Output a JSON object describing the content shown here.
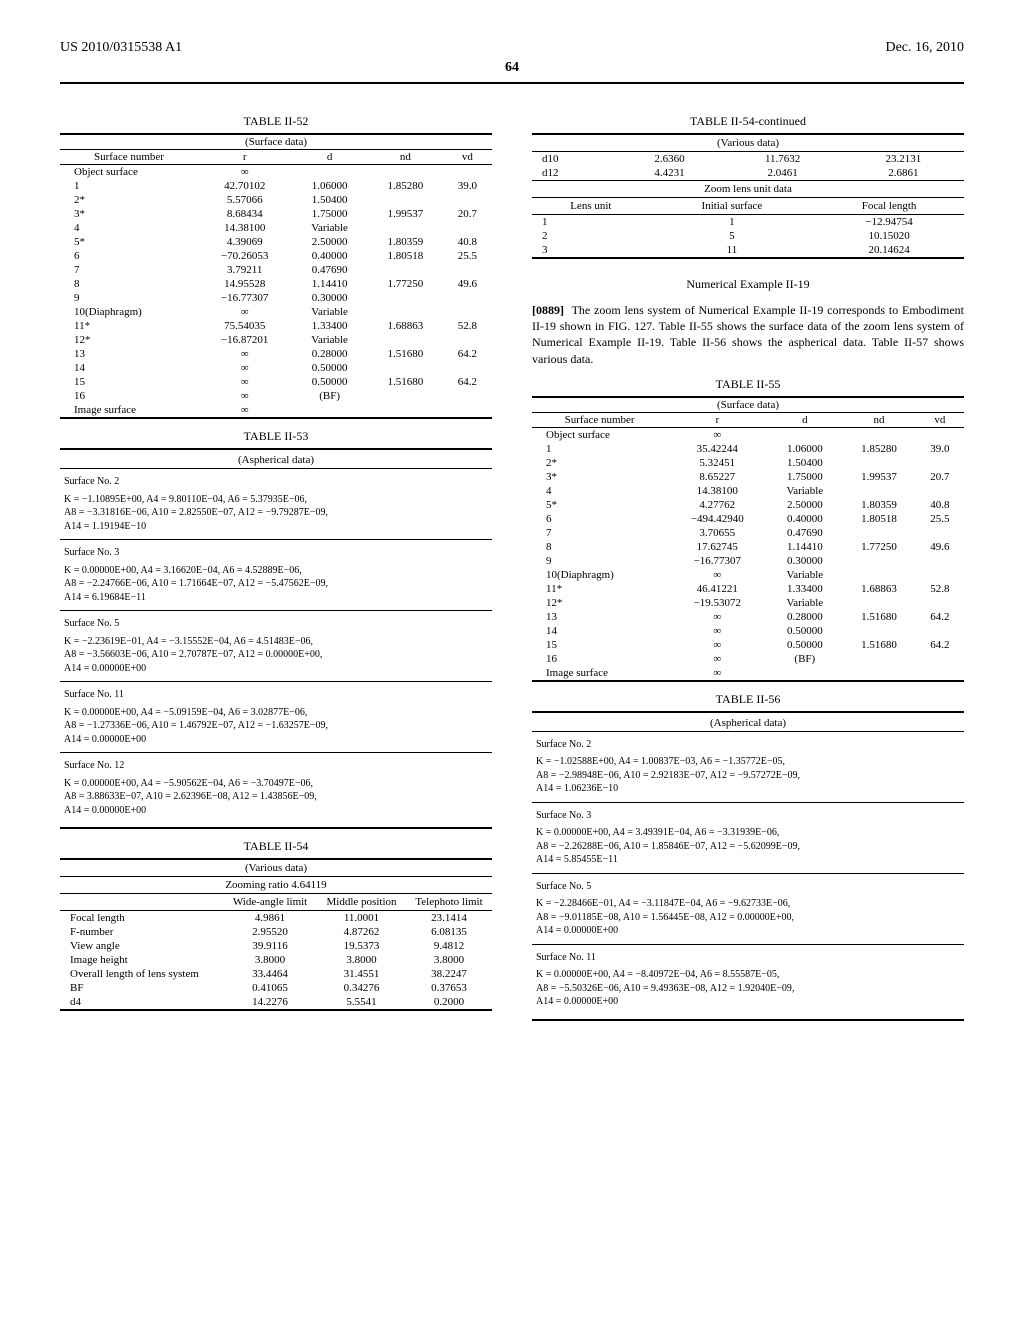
{
  "header": {
    "pub_number": "US 2010/0315538 A1",
    "pub_date": "Dec. 16, 2010",
    "page_number": "64"
  },
  "left": {
    "table52": {
      "title": "TABLE II-52",
      "subtitle": "(Surface data)",
      "columns": [
        "Surface number",
        "r",
        "d",
        "nd",
        "vd"
      ],
      "rows": [
        [
          "Object surface",
          "∞",
          "",
          "",
          ""
        ],
        [
          "1",
          "42.70102",
          "1.06000",
          "1.85280",
          "39.0"
        ],
        [
          "2*",
          "5.57066",
          "1.50400",
          "",
          ""
        ],
        [
          "3*",
          "8.68434",
          "1.75000",
          "1.99537",
          "20.7"
        ],
        [
          "4",
          "14.38100",
          "Variable",
          "",
          ""
        ],
        [
          "5*",
          "4.39069",
          "2.50000",
          "1.80359",
          "40.8"
        ],
        [
          "6",
          "−70.26053",
          "0.40000",
          "1.80518",
          "25.5"
        ],
        [
          "7",
          "3.79211",
          "0.47690",
          "",
          ""
        ],
        [
          "8",
          "14.95528",
          "1.14410",
          "1.77250",
          "49.6"
        ],
        [
          "9",
          "−16.77307",
          "0.30000",
          "",
          ""
        ],
        [
          "10(Diaphragm)",
          "∞",
          "Variable",
          "",
          ""
        ],
        [
          "11*",
          "75.54035",
          "1.33400",
          "1.68863",
          "52.8"
        ],
        [
          "12*",
          "−16.87201",
          "Variable",
          "",
          ""
        ],
        [
          "13",
          "∞",
          "0.28000",
          "1.51680",
          "64.2"
        ],
        [
          "14",
          "∞",
          "0.50000",
          "",
          ""
        ],
        [
          "15",
          "∞",
          "0.50000",
          "1.51680",
          "64.2"
        ],
        [
          "16",
          "∞",
          "(BF)",
          "",
          ""
        ],
        [
          "Image surface",
          "∞",
          "",
          "",
          ""
        ]
      ]
    },
    "table53": {
      "title": "TABLE II-53",
      "subtitle": "(Aspherical data)",
      "entries": [
        {
          "surf": "Surface No. 2",
          "lines": [
            "K = −1.10895E+00, A4 = 9.80110E−04, A6 = 5.37935E−06,",
            "A8 = −3.31816E−06, A10 = 2.82550E−07, A12 = −9.79287E−09,",
            "A14 = 1.19194E−10"
          ]
        },
        {
          "surf": "Surface No. 3",
          "lines": [
            "K = 0.00000E+00, A4 = 3.16620E−04, A6 = 4.52889E−06,",
            "A8 = −2.24766E−06, A10 = 1.71664E−07, A12 = −5.47562E−09,",
            "A14 = 6.19684E−11"
          ]
        },
        {
          "surf": "Surface No. 5",
          "lines": [
            "K = −2.23619E−01, A4 = −3.15552E−04, A6 = 4.51483E−06,",
            "A8 = −3.56603E−06, A10 = 2.70787E−07, A12 = 0.00000E+00,",
            "A14 = 0.00000E+00"
          ]
        },
        {
          "surf": "Surface No. 11",
          "lines": [
            "K = 0.00000E+00, A4 = −5.09159E−04, A6 = 3.02877E−06,",
            "A8 = −1.27336E−06, A10 = 1.46792E−07, A12 = −1.63257E−09,",
            "A14 = 0.00000E+00"
          ]
        },
        {
          "surf": "Surface No. 12",
          "lines": [
            "K = 0.00000E+00, A4 = −5.90562E−04, A6 = −3.70497E−06,",
            "A8 = 3.88633E−07, A10 = 2.62396E−08, A12 = 1.43856E−09,",
            "A14 = 0.00000E+00"
          ]
        }
      ]
    },
    "table54": {
      "title": "TABLE II-54",
      "subtitle": "(Various data)",
      "zoom_ratio": "Zooming ratio 4.64119",
      "columns": [
        "",
        "Wide-angle limit",
        "Middle position",
        "Telephoto limit"
      ],
      "rows": [
        [
          "Focal length",
          "4.9861",
          "11.0001",
          "23.1414"
        ],
        [
          "F-number",
          "2.95520",
          "4.87262",
          "6.08135"
        ],
        [
          "View angle",
          "39.9116",
          "19.5373",
          "9.4812"
        ],
        [
          "Image height",
          "3.8000",
          "3.8000",
          "3.8000"
        ],
        [
          "Overall length of lens system",
          "33.4464",
          "31.4551",
          "38.2247"
        ],
        [
          "BF",
          "0.41065",
          "0.34276",
          "0.37653"
        ],
        [
          "d4",
          "14.2276",
          "5.5541",
          "0.2000"
        ]
      ]
    }
  },
  "right": {
    "table54cont": {
      "title": "TABLE II-54-continued",
      "subtitle": "(Various data)",
      "rows": [
        [
          "d10",
          "2.6360",
          "11.7632",
          "23.2131"
        ],
        [
          "d12",
          "4.4231",
          "2.0461",
          "2.6861"
        ]
      ],
      "zoom_unit": {
        "title": "Zoom lens unit data",
        "columns": [
          "Lens unit",
          "Initial surface",
          "Focal length"
        ],
        "rows": [
          [
            "1",
            "1",
            "−12.94754"
          ],
          [
            "2",
            "5",
            "10.15020"
          ],
          [
            "3",
            "11",
            "20.14624"
          ]
        ]
      }
    },
    "example": {
      "heading": "Numerical Example II-19",
      "para_num": "[0889]",
      "para": "The zoom lens system of Numerical Example II-19 corresponds to Embodiment II-19 shown in FIG. 127. Table II-55 shows the surface data of the zoom lens system of Numerical Example II-19. Table II-56 shows the aspherical data. Table II-57 shows various data."
    },
    "table55": {
      "title": "TABLE II-55",
      "subtitle": "(Surface data)",
      "columns": [
        "Surface number",
        "r",
        "d",
        "nd",
        "vd"
      ],
      "rows": [
        [
          "Object surface",
          "∞",
          "",
          "",
          ""
        ],
        [
          "1",
          "35.42244",
          "1.06000",
          "1.85280",
          "39.0"
        ],
        [
          "2*",
          "5.32451",
          "1.50400",
          "",
          ""
        ],
        [
          "3*",
          "8.65227",
          "1.75000",
          "1.99537",
          "20.7"
        ],
        [
          "4",
          "14.38100",
          "Variable",
          "",
          ""
        ],
        [
          "5*",
          "4.27762",
          "2.50000",
          "1.80359",
          "40.8"
        ],
        [
          "6",
          "−494.42940",
          "0.40000",
          "1.80518",
          "25.5"
        ],
        [
          "7",
          "3.70655",
          "0.47690",
          "",
          ""
        ],
        [
          "8",
          "17.62745",
          "1.14410",
          "1.77250",
          "49.6"
        ],
        [
          "9",
          "−16.77307",
          "0.30000",
          "",
          ""
        ],
        [
          "10(Diaphragm)",
          "∞",
          "Variable",
          "",
          ""
        ],
        [
          "11*",
          "46.41221",
          "1.33400",
          "1.68863",
          "52.8"
        ],
        [
          "12*",
          "−19.53072",
          "Variable",
          "",
          ""
        ],
        [
          "13",
          "∞",
          "0.28000",
          "1.51680",
          "64.2"
        ],
        [
          "14",
          "∞",
          "0.50000",
          "",
          ""
        ],
        [
          "15",
          "∞",
          "0.50000",
          "1.51680",
          "64.2"
        ],
        [
          "16",
          "∞",
          "(BF)",
          "",
          ""
        ],
        [
          "Image surface",
          "∞",
          "",
          "",
          ""
        ]
      ]
    },
    "table56": {
      "title": "TABLE II-56",
      "subtitle": "(Aspherical data)",
      "entries": [
        {
          "surf": "Surface No. 2",
          "lines": [
            "K = −1.02588E+00, A4 = 1.00837E−03, A6 = −1.35772E−05,",
            "A8 = −2.98948E−06, A10 = 2.92183E−07, A12 = −9.57272E−09,",
            "A14 = 1.06236E−10"
          ]
        },
        {
          "surf": "Surface No. 3",
          "lines": [
            "K = 0.00000E+00, A4 = 3.49391E−04, A6 = −3.31939E−06,",
            "A8 = −2.26288E−06, A10 = 1.85846E−07, A12 = −5.62099E−09,",
            "A14 = 5.85455E−11"
          ]
        },
        {
          "surf": "Surface No. 5",
          "lines": [
            "K = −2.28466E−01, A4 = −3.11847E−04, A6 = −9.62733E−06,",
            "A8 = −9.01185E−08, A10 = 1.56445E−08, A12 = 0.00000E+00,",
            "A14 = 0.00000E+00"
          ]
        },
        {
          "surf": "Surface No. 11",
          "lines": [
            "K = 0.00000E+00, A4 = −8.40972E−04, A6 = 8.55587E−05,",
            "A8 = −5.50326E−06, A10 = 9.49363E−08, A12 = 1.92040E−09,",
            "A14 = 0.00000E+00"
          ]
        }
      ]
    }
  }
}
